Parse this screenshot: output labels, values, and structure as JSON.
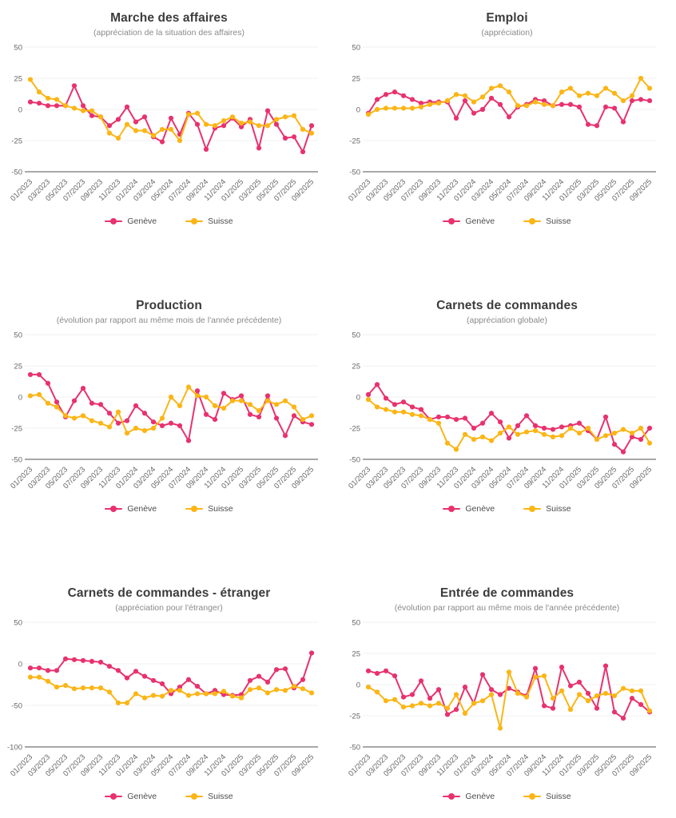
{
  "colors": {
    "geneve": "#E8326D",
    "suisse": "#FBB515",
    "grid": "#F2F0F3",
    "axis": "#8C8C8C",
    "tick_text": "#666666",
    "title_text": "#3C3C3C",
    "subtitle_text": "#8A8A8A"
  },
  "chart_data": {
    "type": "line",
    "x": [
      "01/2023",
      "02/2023",
      "03/2023",
      "04/2023",
      "05/2023",
      "06/2023",
      "07/2023",
      "08/2023",
      "09/2023",
      "10/2023",
      "11/2023",
      "12/2023",
      "01/2024",
      "02/2024",
      "03/2024",
      "04/2024",
      "05/2024",
      "06/2024",
      "07/2024",
      "08/2024",
      "09/2024",
      "10/2024",
      "11/2024",
      "12/2024",
      "01/2025",
      "02/2025",
      "03/2025",
      "04/2025",
      "05/2025",
      "06/2025",
      "07/2025",
      "08/2025",
      "09/2025"
    ],
    "x_tick_labels": [
      "01/2023",
      "03/2023",
      "05/2023",
      "07/2023",
      "09/2023",
      "11/2023",
      "01/2024",
      "03/2024",
      "05/2024",
      "07/2024",
      "09/2024",
      "11/2024",
      "01/2025",
      "03/2025",
      "05/2025",
      "07/2025",
      "09/2025"
    ],
    "legend_position": "bottom",
    "grid": true,
    "charts": [
      {
        "title": "Marche des affaires",
        "subtitle": "(appréciation de la situation des affaires)",
        "ylim": [
          -50,
          50
        ],
        "y_ticks": [
          50,
          25,
          0,
          -25,
          -50
        ],
        "x_label_step": 2,
        "series": [
          {
            "name": "Genève",
            "color": "#E8326D",
            "values": [
              6,
              5,
              3,
              3,
              3,
              19,
              3,
              -5,
              -6,
              -13,
              -8,
              2,
              -10,
              -6,
              -22,
              -26,
              -7,
              -20,
              -3,
              -12,
              -32,
              -15,
              -13,
              -7,
              -14,
              -8,
              -31,
              -1,
              -12,
              -23,
              -22,
              -34,
              -13
            ]
          },
          {
            "name": "Suisse",
            "color": "#FBB515",
            "values": [
              24,
              14,
              9,
              8,
              3,
              1,
              -1,
              -1,
              -6,
              -19,
              -23,
              -12,
              -17,
              -17,
              -21,
              -16,
              -16,
              -25,
              -4,
              -3,
              -12,
              -13,
              -9,
              -6,
              -11,
              -10,
              -13,
              -13,
              -8,
              -6,
              -5,
              -16,
              -19
            ]
          }
        ]
      },
      {
        "title": "Emploi",
        "subtitle": "(appréciation)",
        "ylim": [
          -50,
          50
        ],
        "y_ticks": [
          50,
          25,
          0,
          -25,
          -50
        ],
        "x_label_step": 2,
        "series": [
          {
            "name": "Genève",
            "color": "#E8326D",
            "values": [
              -3,
              8,
              12,
              14,
              11,
              8,
              5,
              6,
              6,
              6,
              -7,
              7,
              -3,
              0,
              9,
              4,
              -6,
              2,
              4,
              8,
              7,
              3,
              4,
              4,
              2,
              -12,
              -13,
              2,
              1,
              -10,
              7,
              8,
              7
            ]
          },
          {
            "name": "Suisse",
            "color": "#FBB515",
            "values": [
              -4,
              0,
              1,
              1,
              1,
              1,
              2,
              4,
              5,
              7,
              12,
              11,
              6,
              10,
              17,
              19,
              14,
              3,
              3,
              6,
              4,
              3,
              14,
              17,
              11,
              13,
              11,
              17,
              13,
              7,
              11,
              25,
              17
            ]
          }
        ]
      },
      {
        "title": "Production",
        "subtitle": "(évolution par rapport au même mois de l'année précédente)",
        "ylim": [
          -50,
          50
        ],
        "y_ticks": [
          50,
          25,
          0,
          -25,
          -50
        ],
        "x_label_step": 2,
        "series": [
          {
            "name": "Genève",
            "color": "#E8326D",
            "values": [
              18,
              18,
              11,
              -4,
              -16,
              -3,
              7,
              -5,
              -6,
              -13,
              -21,
              -19,
              -7,
              -13,
              -20,
              -23,
              -21,
              -23,
              -35,
              5,
              -14,
              -18,
              3,
              -2,
              1,
              -14,
              -16,
              1,
              -17,
              -31,
              -15,
              -20,
              -22
            ]
          },
          {
            "name": "Suisse",
            "color": "#FBB515",
            "values": [
              1,
              2,
              -5,
              -8,
              -15,
              -17,
              -15,
              -19,
              -21,
              -24,
              -12,
              -29,
              -25,
              -27,
              -25,
              -17,
              0,
              -7,
              8,
              1,
              0,
              -7,
              -9,
              -3,
              -3,
              -6,
              -11,
              -3,
              -6,
              -3,
              -8,
              -18,
              -15
            ]
          }
        ]
      },
      {
        "title": "Carnets de commandes",
        "subtitle": "(appréciation globale)",
        "ylim": [
          -50,
          50
        ],
        "y_ticks": [
          50,
          25,
          0,
          -25,
          -50
        ],
        "x_label_step": 2,
        "series": [
          {
            "name": "Genève",
            "color": "#E8326D",
            "values": [
              2,
              10,
              -1,
              -6,
              -4,
              -8,
              -10,
              -18,
              -16,
              -16,
              -18,
              -17,
              -25,
              -21,
              -13,
              -20,
              -33,
              -23,
              -15,
              -23,
              -25,
              -26,
              -24,
              -23,
              -21,
              -27,
              -34,
              -16,
              -38,
              -44,
              -32,
              -34,
              -25
            ]
          },
          {
            "name": "Suisse",
            "color": "#FBB515",
            "values": [
              -2,
              -8,
              -10,
              -12,
              -12,
              -14,
              -15,
              -18,
              -21,
              -37,
              -42,
              -30,
              -34,
              -32,
              -35,
              -29,
              -24,
              -30,
              -28,
              -27,
              -30,
              -32,
              -31,
              -25,
              -29,
              -25,
              -34,
              -31,
              -29,
              -26,
              -29,
              -25,
              -37
            ]
          }
        ]
      },
      {
        "title": "Carnets de commandes - étranger",
        "subtitle": "(appréciation pour l'étranger)",
        "ylim": [
          -100,
          50
        ],
        "y_ticks": [
          50,
          0,
          -50,
          -100
        ],
        "x_label_step": 2,
        "series": [
          {
            "name": "Genève",
            "color": "#E8326D",
            "values": [
              -5,
              -5,
              -8,
              -8,
              6,
              5,
              4,
              3,
              2,
              -3,
              -8,
              -17,
              -9,
              -15,
              -20,
              -24,
              -36,
              -28,
              -19,
              -27,
              -36,
              -32,
              -37,
              -38,
              -37,
              -20,
              -15,
              -22,
              -7,
              -6,
              -29,
              -19,
              13
            ]
          },
          {
            "name": "Suisse",
            "color": "#FBB515",
            "values": [
              -16,
              -16,
              -21,
              -28,
              -26,
              -30,
              -29,
              -29,
              -29,
              -34,
              -47,
              -47,
              -36,
              -41,
              -38,
              -39,
              -32,
              -32,
              -38,
              -36,
              -36,
              -36,
              -33,
              -39,
              -41,
              -31,
              -29,
              -35,
              -31,
              -32,
              -27,
              -30,
              -35
            ]
          }
        ]
      },
      {
        "title": "Entrée de commandes",
        "subtitle": "(évolution par rapport au même mois de l'année précédente)",
        "ylim": [
          -50,
          50
        ],
        "y_ticks": [
          50,
          25,
          0,
          -25,
          -50
        ],
        "x_label_step": 2,
        "series": [
          {
            "name": "Genève",
            "color": "#E8326D",
            "values": [
              11,
              9,
              11,
              7,
              -10,
              -8,
              3,
              -11,
              -4,
              -24,
              -20,
              -2,
              -15,
              8,
              -4,
              -8,
              -3,
              -6,
              -9,
              13,
              -17,
              -19,
              14,
              -1,
              2,
              -7,
              -19,
              15,
              -22,
              -27,
              -11,
              -16,
              -22
            ]
          },
          {
            "name": "Suisse",
            "color": "#FBB515",
            "values": [
              -2,
              -6,
              -13,
              -12,
              -18,
              -17,
              -15,
              -17,
              -15,
              -19,
              -8,
              -23,
              -15,
              -13,
              -8,
              -35,
              10,
              -7,
              -10,
              6,
              7,
              -11,
              -5,
              -20,
              -8,
              -13,
              -9,
              -7,
              -9,
              -3,
              -5,
              -5,
              -21
            ]
          }
        ]
      }
    ]
  }
}
